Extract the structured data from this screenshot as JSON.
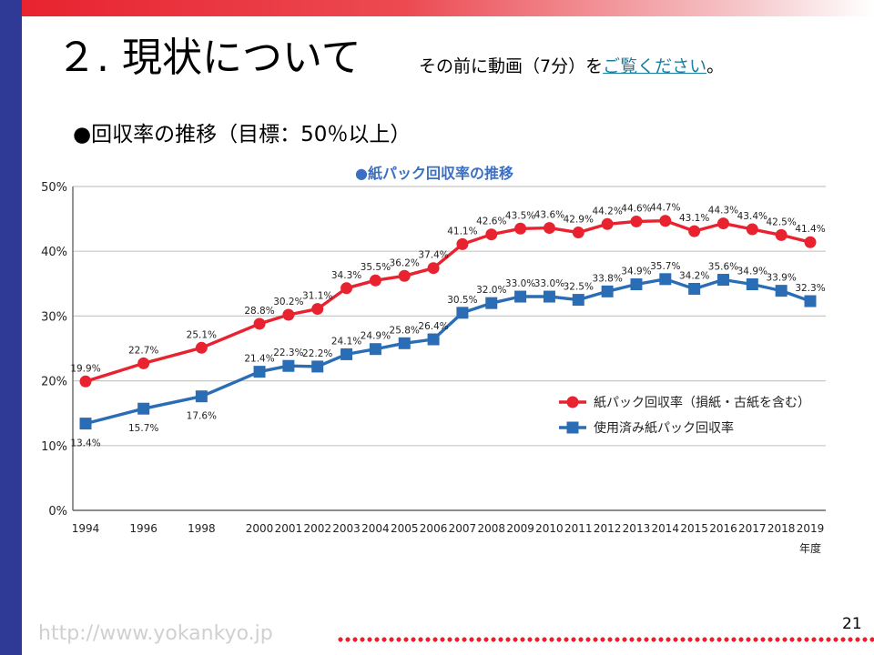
{
  "slide": {
    "title": "２. 現状について",
    "note_prefix": "その前に動画（7分）を",
    "note_link": "ご覧ください",
    "note_suffix": "。",
    "subtitle": "●回収率の推移（目標：50％以上）",
    "url": "http://www.yokankyo.jp",
    "page_number": "21"
  },
  "colors": {
    "red_series": "#e8232f",
    "blue_series": "#2a6db5",
    "chart_title": "#3a6fc4"
  },
  "chart_data": {
    "type": "line",
    "title": "●紙パック回収率の推移",
    "xlabel": "年度",
    "ylabel": "",
    "ylim": [
      0,
      50
    ],
    "y_ticks": [
      "0%",
      "10%",
      "20%",
      "30%",
      "40%",
      "50%"
    ],
    "x_ticks": [
      "1994",
      "1996",
      "1998",
      "2000",
      "2001",
      "2002",
      "2003",
      "2004",
      "2005",
      "2006",
      "2007",
      "2008",
      "2009",
      "2010",
      "2011",
      "2012",
      "2013",
      "2014",
      "2015",
      "2016",
      "2017",
      "2018",
      "2019"
    ],
    "legend_position": "right-middle",
    "series": [
      {
        "name": "紙パック回収率（損紙・古紙を含む）",
        "marker": "circle",
        "x": [
          1994,
          1996,
          1998,
          2000,
          2001,
          2002,
          2003,
          2004,
          2005,
          2006,
          2007,
          2008,
          2009,
          2010,
          2011,
          2012,
          2013,
          2014,
          2015,
          2016,
          2017,
          2018,
          2019
        ],
        "values": [
          19.9,
          22.7,
          25.1,
          28.8,
          30.2,
          31.1,
          34.3,
          35.5,
          36.2,
          37.4,
          41.1,
          42.6,
          43.5,
          43.6,
          42.9,
          44.2,
          44.6,
          44.7,
          43.1,
          44.3,
          43.4,
          42.5,
          41.4
        ],
        "labels": [
          "19.9%",
          "22.7%",
          "25.1%",
          "28.8%",
          "30.2%",
          "31.1%",
          "34.3%",
          "35.5%",
          "36.2%",
          "37.4%",
          "41.1%",
          "42.6%",
          "43.5%",
          "43.6%",
          "42.9%",
          "44.2%",
          "44.6%",
          "44.7%",
          "43.1%",
          "44.3%",
          "43.4%",
          "42.5%",
          "41.4%"
        ]
      },
      {
        "name": "使用済み紙パック回収率",
        "marker": "square",
        "x": [
          1994,
          1996,
          1998,
          2000,
          2001,
          2002,
          2003,
          2004,
          2005,
          2006,
          2007,
          2008,
          2009,
          2010,
          2011,
          2012,
          2013,
          2014,
          2015,
          2016,
          2017,
          2018,
          2019
        ],
        "values": [
          13.4,
          15.7,
          17.6,
          21.4,
          22.3,
          22.2,
          24.1,
          24.9,
          25.8,
          26.4,
          30.5,
          32.0,
          33.0,
          33.0,
          32.5,
          33.8,
          34.9,
          35.7,
          34.2,
          35.6,
          34.9,
          33.9,
          32.3
        ],
        "labels": [
          "13.4%",
          "15.7%",
          "17.6%",
          "21.4%",
          "22.3%",
          "22.2%",
          "24.1%",
          "24.9%",
          "25.8%",
          "26.4%",
          "30.5%",
          "32.0%",
          "33.0%",
          "33.0%",
          "32.5%",
          "33.8%",
          "34.9%",
          "35.7%",
          "34.2%",
          "35.6%",
          "34.9%",
          "33.9%",
          "32.3%"
        ]
      }
    ]
  }
}
